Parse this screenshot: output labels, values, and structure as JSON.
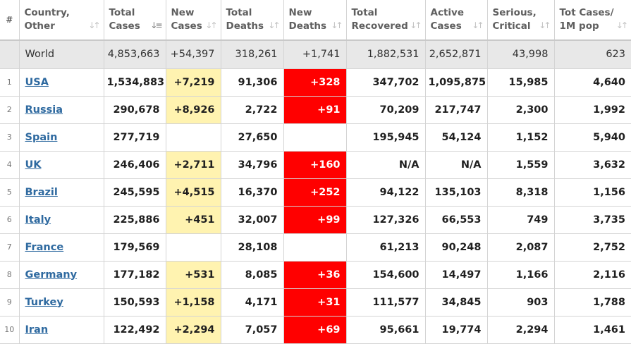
{
  "colors": {
    "new_cases_bg": "#fff3b0",
    "new_deaths_bg": "#ff0000",
    "link": "#2f6aa0",
    "world_bg": "#e8e8e8"
  },
  "headers": {
    "index": "#",
    "country": [
      "Country,",
      "Other"
    ],
    "total_cases": [
      "Total",
      "Cases"
    ],
    "new_cases": [
      "New",
      "Cases"
    ],
    "total_deaths": [
      "Total",
      "Deaths"
    ],
    "new_deaths": [
      "New",
      "Deaths"
    ],
    "total_recovered": [
      "Total",
      "Recovered"
    ],
    "active_cases": [
      "Active",
      "Cases"
    ],
    "serious_critical": [
      "Serious,",
      "Critical"
    ],
    "tot_cases_1m": [
      "Tot Cases/",
      "1M pop"
    ]
  },
  "world": {
    "country": "World",
    "total_cases": "4,853,663",
    "new_cases": "+54,397",
    "total_deaths": "318,261",
    "new_deaths": "+1,741",
    "total_recovered": "1,882,531",
    "active_cases": "2,652,871",
    "serious_critical": "43,998",
    "tot_cases_1m": "623"
  },
  "rows": [
    {
      "index": "1",
      "country": "USA",
      "total_cases": "1,534,883",
      "new_cases": "+7,219",
      "total_deaths": "91,306",
      "new_deaths": "+328",
      "total_recovered": "347,702",
      "active_cases": "1,095,875",
      "serious_critical": "15,985",
      "tot_cases_1m": "4,640"
    },
    {
      "index": "2",
      "country": "Russia",
      "total_cases": "290,678",
      "new_cases": "+8,926",
      "total_deaths": "2,722",
      "new_deaths": "+91",
      "total_recovered": "70,209",
      "active_cases": "217,747",
      "serious_critical": "2,300",
      "tot_cases_1m": "1,992"
    },
    {
      "index": "3",
      "country": "Spain",
      "total_cases": "277,719",
      "new_cases": "",
      "total_deaths": "27,650",
      "new_deaths": "",
      "total_recovered": "195,945",
      "active_cases": "54,124",
      "serious_critical": "1,152",
      "tot_cases_1m": "5,940"
    },
    {
      "index": "4",
      "country": "UK",
      "total_cases": "246,406",
      "new_cases": "+2,711",
      "total_deaths": "34,796",
      "new_deaths": "+160",
      "total_recovered": "N/A",
      "active_cases": "N/A",
      "serious_critical": "1,559",
      "tot_cases_1m": "3,632"
    },
    {
      "index": "5",
      "country": "Brazil",
      "total_cases": "245,595",
      "new_cases": "+4,515",
      "total_deaths": "16,370",
      "new_deaths": "+252",
      "total_recovered": "94,122",
      "active_cases": "135,103",
      "serious_critical": "8,318",
      "tot_cases_1m": "1,156"
    },
    {
      "index": "6",
      "country": "Italy",
      "total_cases": "225,886",
      "new_cases": "+451",
      "total_deaths": "32,007",
      "new_deaths": "+99",
      "total_recovered": "127,326",
      "active_cases": "66,553",
      "serious_critical": "749",
      "tot_cases_1m": "3,735"
    },
    {
      "index": "7",
      "country": "France",
      "total_cases": "179,569",
      "new_cases": "",
      "total_deaths": "28,108",
      "new_deaths": "",
      "total_recovered": "61,213",
      "active_cases": "90,248",
      "serious_critical": "2,087",
      "tot_cases_1m": "2,752"
    },
    {
      "index": "8",
      "country": "Germany",
      "total_cases": "177,182",
      "new_cases": "+531",
      "total_deaths": "8,085",
      "new_deaths": "+36",
      "total_recovered": "154,600",
      "active_cases": "14,497",
      "serious_critical": "1,166",
      "tot_cases_1m": "2,116"
    },
    {
      "index": "9",
      "country": "Turkey",
      "total_cases": "150,593",
      "new_cases": "+1,158",
      "total_deaths": "4,171",
      "new_deaths": "+31",
      "total_recovered": "111,577",
      "active_cases": "34,845",
      "serious_critical": "903",
      "tot_cases_1m": "1,788"
    },
    {
      "index": "10",
      "country": "Iran",
      "total_cases": "122,492",
      "new_cases": "+2,294",
      "total_deaths": "7,057",
      "new_deaths": "+69",
      "total_recovered": "95,661",
      "active_cases": "19,774",
      "serious_critical": "2,294",
      "tot_cases_1m": "1,461"
    }
  ]
}
